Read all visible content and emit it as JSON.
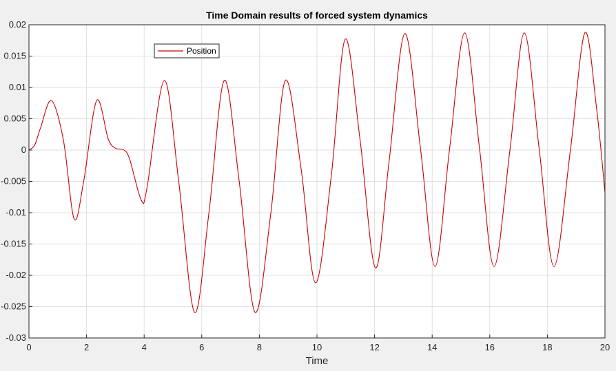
{
  "chart_data": {
    "type": "line",
    "title": "Time Domain results of forced system dynamics",
    "xlabel": "Time",
    "ylabel": "",
    "xlim": [
      0,
      20
    ],
    "ylim": [
      -0.03,
      0.02
    ],
    "xticks": [
      0,
      2,
      4,
      6,
      8,
      10,
      12,
      14,
      16,
      18,
      20
    ],
    "yticks": [
      -0.03,
      -0.025,
      -0.02,
      -0.015,
      -0.01,
      -0.005,
      0,
      0.005,
      0.01,
      0.015,
      0.02
    ],
    "xtick_labels": [
      "0",
      "2",
      "4",
      "6",
      "8",
      "10",
      "12",
      "14",
      "16",
      "18",
      "20"
    ],
    "ytick_labels": [
      "-0.03",
      "-0.025",
      "-0.02",
      "-0.015",
      "-0.01",
      "-0.005",
      "0",
      "0.005",
      "0.01",
      "0.015",
      "0.02"
    ],
    "grid": true,
    "legend_position": "top-left",
    "colors": {
      "series": "#cc0000",
      "axes_bg": "#ffffff",
      "figure_bg": "#f0f0f0",
      "grid": "#dfdfdf",
      "axis": "#262626"
    },
    "series": [
      {
        "name": "Position",
        "x": [
          0,
          0.2,
          0.4,
          0.78,
          1.2,
          1.57,
          1.9,
          2.35,
          2.75,
          3.0,
          3.3,
          3.5,
          3.9,
          4.1,
          4.7,
          5.2,
          5.75,
          6.25,
          6.78,
          7.3,
          7.85,
          8.4,
          8.9,
          9.45,
          9.95,
          10.5,
          10.98,
          11.5,
          12.03,
          12.5,
          13.05,
          13.6,
          14.1,
          14.6,
          15.13,
          15.65,
          16.15,
          16.7,
          17.2,
          17.72,
          18.23,
          18.8,
          19.3,
          19.7,
          20.0
        ],
        "y": [
          0,
          0.0008,
          0.0035,
          0.0079,
          0.0015,
          -0.011,
          -0.005,
          0.0079,
          0.0018,
          0.0003,
          0.0,
          -0.0015,
          -0.008,
          -0.006,
          0.0111,
          -0.005,
          -0.0259,
          -0.01,
          0.0111,
          -0.005,
          -0.0259,
          -0.01,
          0.0111,
          -0.003,
          -0.0212,
          -0.004,
          0.0177,
          0.0015,
          -0.0188,
          -0.002,
          0.0186,
          0.0,
          -0.0186,
          0.0,
          0.0187,
          0.0,
          -0.0186,
          0.0,
          0.0187,
          0.0,
          -0.0186,
          0.0,
          0.0187,
          0.007,
          -0.0068
        ]
      }
    ]
  }
}
